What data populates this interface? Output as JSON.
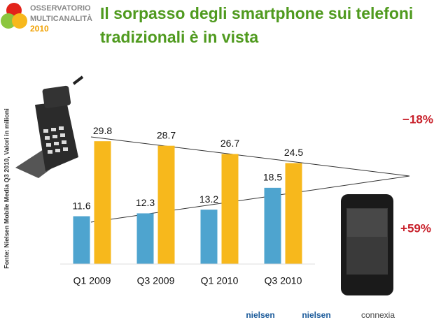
{
  "header": {
    "logo": [
      "OSSERVATORIO",
      "MULTICANALITÀ",
      "2010"
    ]
  },
  "chart_data": {
    "type": "bar",
    "title": "Il sorpasso degli smartphone sui telefoni tradizionali è in vista",
    "source": "Fonte: Nielsen Mobile Media Q3 2010, Valori in milioni",
    "categories": [
      "Q1 2009",
      "Q3 2009",
      "Q1 2010",
      "Q3 2010"
    ],
    "series": [
      {
        "color": "#4ea4cf",
        "values": [
          11.6,
          12.3,
          13.2,
          18.5
        ]
      },
      {
        "color": "#f7b81c",
        "values": [
          29.8,
          28.7,
          26.7,
          24.5
        ]
      }
    ],
    "ylim": [
      0,
      30
    ],
    "annotations": [
      "−18%",
      "+59%"
    ]
  },
  "footer": {
    "logos": [
      "nielsen",
      "nielsen",
      "connexia"
    ]
  }
}
